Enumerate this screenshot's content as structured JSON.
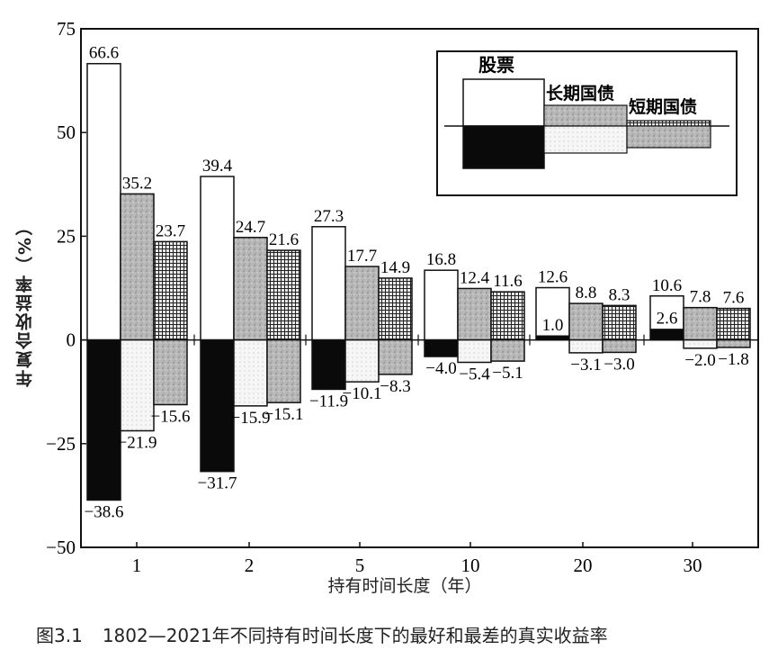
{
  "chart_data": {
    "type": "bar",
    "title": "1802—2021年不同持有时间长度下的最好和最差的真实收益率",
    "figure_number": "图3.1",
    "xlabel": "持有时间长度（年）",
    "ylabel": "年复合收益率（%）",
    "ylim": [
      -50,
      75
    ],
    "yticks": [
      75,
      50,
      25,
      0,
      -25,
      -50
    ],
    "grid": false,
    "legend_position": "upper right (inset box)",
    "categories": [
      "1",
      "2",
      "5",
      "10",
      "20",
      "30"
    ],
    "series": [
      {
        "name": "股票",
        "best": [
          66.6,
          39.4,
          27.3,
          16.8,
          12.6,
          10.6
        ],
        "worst": [
          -38.6,
          -31.7,
          -11.9,
          -4.0,
          1.0,
          2.6
        ]
      },
      {
        "name": "长期国债",
        "best": [
          35.2,
          24.7,
          17.7,
          12.4,
          8.8,
          7.8
        ],
        "worst": [
          -21.9,
          -15.9,
          -10.1,
          -5.4,
          -3.1,
          -2.0
        ]
      },
      {
        "name": "短期国债",
        "best": [
          23.7,
          21.6,
          14.9,
          11.6,
          8.3,
          7.6
        ],
        "worst": [
          -15.6,
          -15.1,
          -8.3,
          -5.1,
          -3.0,
          -1.8
        ]
      }
    ]
  },
  "labels": {
    "ylabel": "年复合收益率（%）",
    "xlabel": "持有时间长度（年）",
    "figure_number": "图3.1",
    "caption": "1802—2021年不同持有时间长度下的最好和最差的真实收益率"
  },
  "legend": [
    "股票",
    "长期国债",
    "短期国债"
  ]
}
